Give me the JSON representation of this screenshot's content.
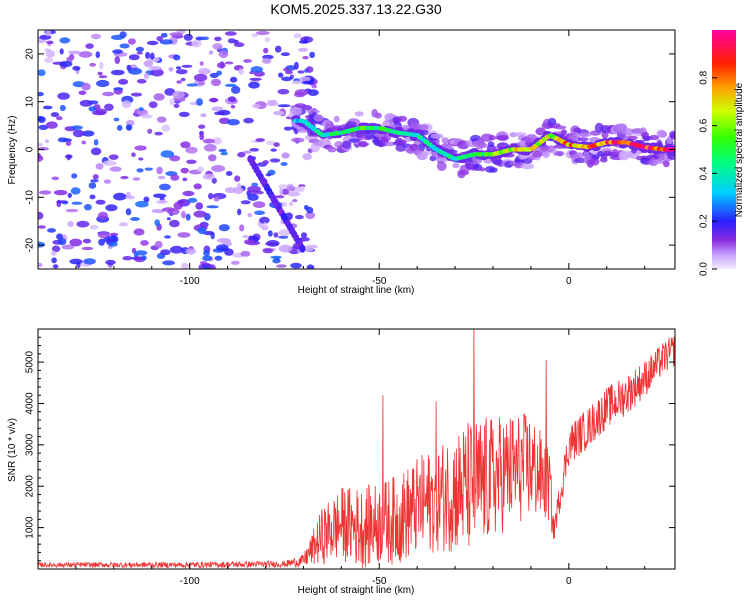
{
  "title": "KOM5.2025.337.13.22.G30",
  "chart_data": [
    {
      "type": "heatmap",
      "name": "spectrogram",
      "xlabel": "Height of straight line (km)",
      "ylabel": "Frequency (Hz)",
      "xlim": [
        -140,
        28
      ],
      "ylim": [
        -25,
        25
      ],
      "xticks": [
        -100,
        -50,
        0
      ],
      "yticks": [
        -20,
        -10,
        0,
        10,
        20
      ],
      "colorbar": {
        "label": "Normalized spectral amplitude",
        "range": [
          0,
          1
        ],
        "ticks": [
          0.0,
          0.2,
          0.4,
          0.6,
          0.8
        ],
        "tick_labels": [
          "0.0",
          "0.2",
          "0.4",
          "0.6",
          "0.8"
        ]
      },
      "ridge": {
        "x": [
          -70,
          -65,
          -60,
          -55,
          -50,
          -45,
          -40,
          -35,
          -30,
          -25,
          -20,
          -15,
          -10,
          -5,
          0,
          5,
          10,
          15,
          20,
          25,
          28
        ],
        "frequency": [
          6,
          3,
          3.5,
          4.5,
          4.5,
          3.5,
          3,
          0,
          -2,
          -1,
          -1,
          0,
          0,
          3,
          1,
          0.5,
          1.5,
          1.5,
          0.5,
          0,
          0
        ],
        "amplitude": [
          0.35,
          0.45,
          0.5,
          0.55,
          0.5,
          0.5,
          0.45,
          0.4,
          0.45,
          0.5,
          0.6,
          0.7,
          0.75,
          0.65,
          0.8,
          0.85,
          0.9,
          0.95,
          0.95,
          1.0,
          1.0
        ]
      },
      "noise_region": {
        "x_from": -140,
        "x_to": -75,
        "level": "low (0.1-0.35)"
      }
    },
    {
      "type": "line",
      "name": "snr",
      "xlabel": "Height of straight line (km)",
      "ylabel": "SNR (10 * v/v)",
      "xlim": [
        -140,
        28
      ],
      "ylim": [
        0,
        5800
      ],
      "xticks": [
        -100,
        -50,
        0
      ],
      "yticks": [
        1000,
        2000,
        3000,
        4000,
        5000
      ],
      "color": "#ee3333",
      "envelope": {
        "x": [
          -140,
          -100,
          -75,
          -70,
          -65,
          -60,
          -55,
          -50,
          -45,
          -40,
          -35,
          -30,
          -25,
          -20,
          -15,
          -10,
          -5,
          -4,
          0,
          5,
          10,
          15,
          20,
          25,
          28
        ],
        "mean": [
          100,
          100,
          120,
          200,
          800,
          1100,
          1000,
          1100,
          1200,
          1500,
          1700,
          1900,
          2000,
          2200,
          2400,
          2500,
          2000,
          900,
          3000,
          3400,
          3900,
          4200,
          4600,
          5100,
          5300
        ],
        "spread": [
          60,
          70,
          80,
          150,
          700,
          900,
          1000,
          1000,
          1100,
          1200,
          1300,
          1500,
          1700,
          1500,
          1400,
          1300,
          900,
          300,
          500,
          500,
          500,
          500,
          450,
          400,
          400
        ]
      },
      "peaks": [
        {
          "x": -25,
          "y": 5900
        },
        {
          "x": -6,
          "y": 5050
        },
        {
          "x": -49,
          "y": 4200
        },
        {
          "x": -35,
          "y": 4050
        }
      ]
    }
  ]
}
